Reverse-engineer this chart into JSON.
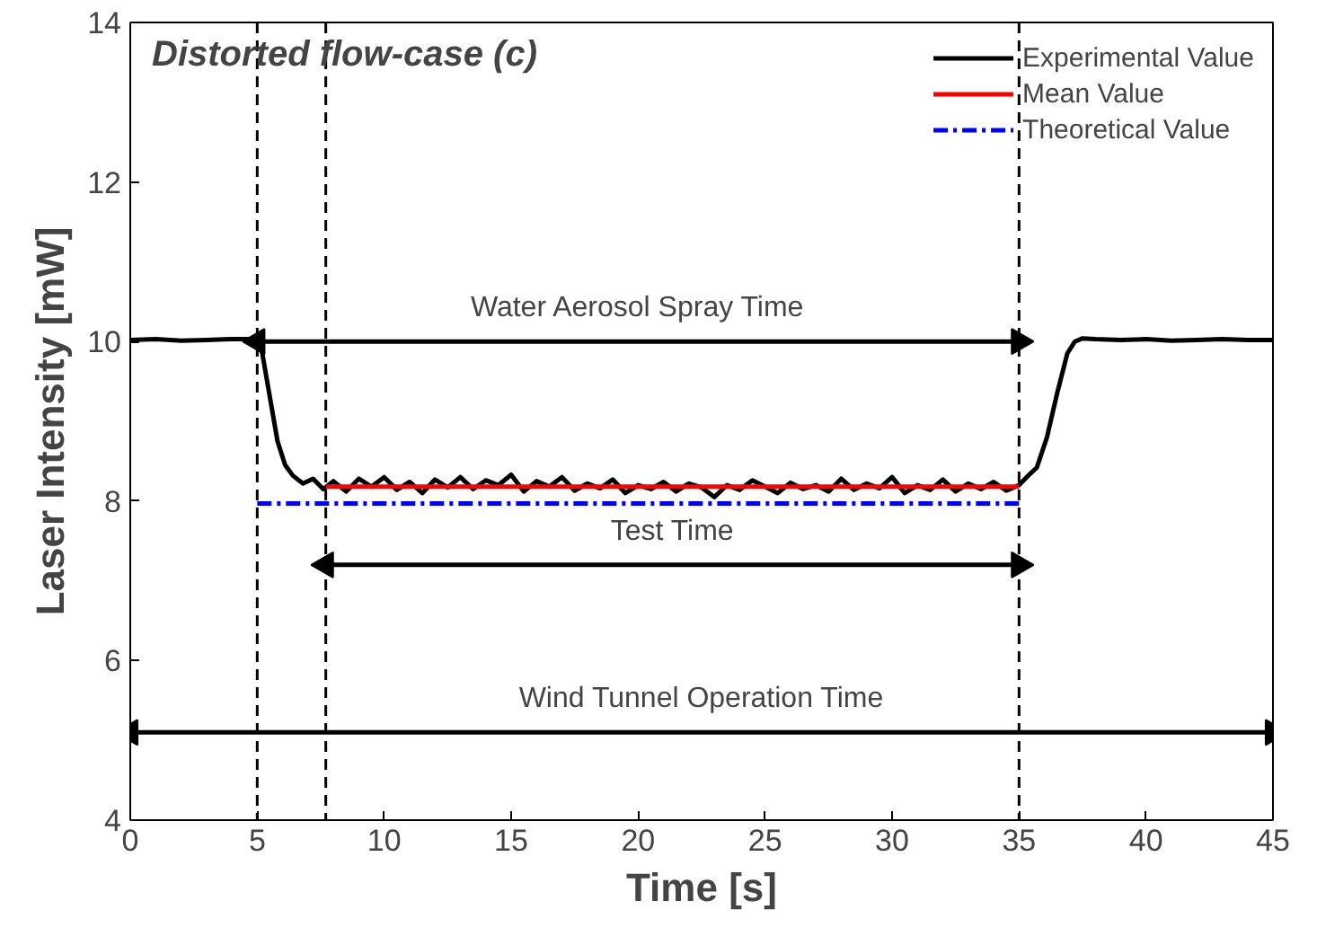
{
  "chart_data": {
    "type": "line",
    "title": "Distorted flow-case (c)",
    "xlabel": "Time [s]",
    "ylabel": "Laser Intensity [mW]",
    "xlim": [
      0,
      45
    ],
    "ylim": [
      4,
      14
    ],
    "xticks": [
      0,
      5,
      10,
      15,
      20,
      25,
      30,
      35,
      40,
      45
    ],
    "yticks": [
      4,
      6,
      8,
      10,
      12,
      14
    ],
    "grid": false,
    "legend": "top right",
    "line_style": "solid",
    "marker": "none",
    "series": [
      {
        "name": "Experimental Value",
        "color": "#000000",
        "x": [
          0,
          1,
          2,
          3,
          4,
          5,
          5.2,
          5.5,
          5.8,
          6.1,
          6.4,
          6.8,
          7.2,
          7.6,
          8,
          8.5,
          9,
          9.5,
          10,
          10.5,
          11,
          11.5,
          12,
          12.5,
          13,
          13.5,
          14,
          14.5,
          15,
          15.5,
          16,
          16.5,
          17,
          17.5,
          18,
          18.5,
          19,
          19.5,
          20,
          20.5,
          21,
          21.5,
          22,
          22.5,
          23,
          23.5,
          24,
          24.5,
          25,
          25.5,
          26,
          26.5,
          27,
          27.5,
          28,
          28.5,
          29,
          29.5,
          30,
          30.5,
          31,
          31.5,
          32,
          32.5,
          33,
          33.5,
          34,
          34.5,
          35,
          35.3,
          35.7,
          36.1,
          36.5,
          36.9,
          37.2,
          37.5,
          38,
          39,
          40,
          41,
          42,
          43,
          44,
          45
        ],
        "values": [
          10.02,
          10.03,
          10.01,
          10.02,
          10.03,
          10.03,
          9.85,
          9.3,
          8.75,
          8.45,
          8.32,
          8.22,
          8.28,
          8.15,
          8.25,
          8.12,
          8.28,
          8.18,
          8.3,
          8.14,
          8.24,
          8.1,
          8.27,
          8.17,
          8.3,
          8.15,
          8.26,
          8.2,
          8.33,
          8.12,
          8.25,
          8.18,
          8.3,
          8.13,
          8.22,
          8.16,
          8.27,
          8.1,
          8.2,
          8.15,
          8.24,
          8.12,
          8.22,
          8.17,
          8.05,
          8.2,
          8.14,
          8.26,
          8.18,
          8.1,
          8.23,
          8.15,
          8.2,
          8.12,
          8.28,
          8.14,
          8.22,
          8.16,
          8.3,
          8.1,
          8.2,
          8.14,
          8.27,
          8.12,
          8.22,
          8.15,
          8.24,
          8.13,
          8.2,
          8.3,
          8.42,
          8.8,
          9.35,
          9.85,
          10.0,
          10.04,
          10.03,
          10.02,
          10.03,
          10.01,
          10.02,
          10.03,
          10.02,
          10.02
        ]
      },
      {
        "name": "Mean Value",
        "color": "#ff0000",
        "x": [
          7.7,
          35
        ],
        "values": [
          8.18,
          8.18
        ]
      },
      {
        "name": "Theoretical Value",
        "color": "#0000ff",
        "x": [
          5,
          35
        ],
        "values": [
          7.97,
          7.97
        ],
        "line_style": "dashed"
      },
      {
        "name": "Water Aerosol Spray Time",
        "type": "line",
        "color": "#000000",
        "x": [
          5,
          35
        ],
        "values": [
          10,
          10
        ],
        "marker": "triangle"
      },
      {
        "name": "Test Time",
        "type": "line",
        "color": "#000000",
        "x": [
          7.7,
          35
        ],
        "values": [
          7.2,
          7.2
        ],
        "marker": "triangle"
      },
      {
        "name": "Wind Tunnel Operation Time",
        "type": "line",
        "color": "#000000",
        "x": [
          0,
          45
        ],
        "values": [
          5.1,
          5.1
        ],
        "marker": "triangle"
      }
    ],
    "ref_lines": [
      {
        "axis": "x",
        "value": 5,
        "color": "#000000",
        "line_style": "dashed"
      },
      {
        "axis": "x",
        "value": 7.7,
        "color": "#000000",
        "line_style": "dashed"
      },
      {
        "axis": "x",
        "value": 35,
        "color": "#000000",
        "line_style": "dashed"
      }
    ]
  }
}
